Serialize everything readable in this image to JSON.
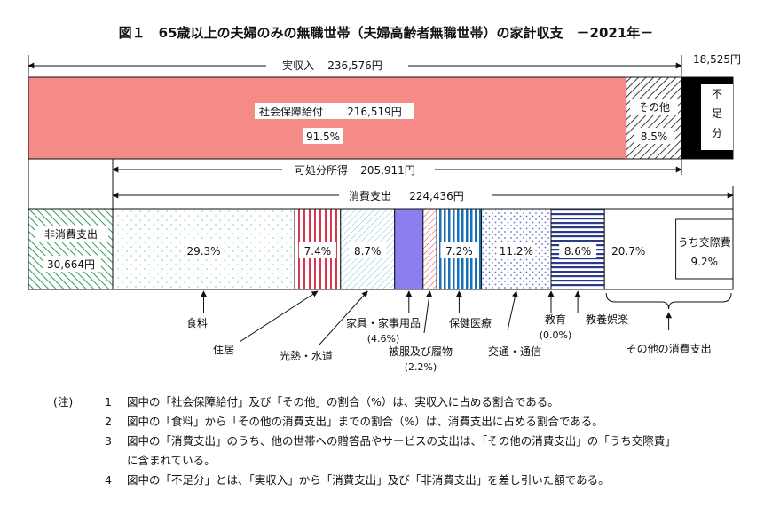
{
  "chart_data": {
    "type": "bar",
    "title": "図１　65歳以上の夫婦のみの無職世帯（夫婦高齢者無職世帯）の家計収支　－2021年－",
    "income": {
      "total_label": "実収入",
      "total_value": "236,576円",
      "shortfall_value": "18,525円",
      "shortfall_label": "不足分",
      "segments": [
        {
          "name": "社会保障給付",
          "amount": "216,519円",
          "share": "91.5%",
          "value": 216519
        },
        {
          "name": "その他",
          "share": "8.5%",
          "value": 20057
        }
      ]
    },
    "disposable": {
      "label": "可処分所得",
      "value": "205,911円"
    },
    "expenditure": {
      "total_label": "消費支出",
      "total_value": "224,436円",
      "non_consumption": {
        "name": "非消費支出",
        "amount": "30,664円",
        "value": 30664
      },
      "segments": [
        {
          "name": "食料",
          "share": "29.3%",
          "value": 29.3
        },
        {
          "name": "住居",
          "share": "7.4%",
          "value": 7.4
        },
        {
          "name": "光熱・水道",
          "share": "8.7%",
          "value": 8.7
        },
        {
          "name": "家具・家事用品",
          "share": "(4.6%)",
          "value": 4.6
        },
        {
          "name": "被服及び履物",
          "share": "(2.2%)",
          "value": 2.2
        },
        {
          "name": "保健医療",
          "share": "7.2%",
          "value": 7.2
        },
        {
          "name": "交通・通信",
          "share": "11.2%",
          "value": 11.2
        },
        {
          "name": "教育",
          "share": "(0.0%)",
          "value": 0.0
        },
        {
          "name": "教養娯楽",
          "share": "8.6%",
          "value": 8.6
        },
        {
          "name": "その他の消費支出",
          "share": "20.7%",
          "value": 20.7
        }
      ],
      "sub_segment": {
        "name": "うち交際費",
        "share": "9.2%",
        "value": 9.2
      }
    }
  },
  "notes": {
    "marker": "(注)",
    "items": [
      {
        "num": "1",
        "text": "図中の「社会保障給付」及び「その他」の割合（%）は、実収入に占める割合である。"
      },
      {
        "num": "2",
        "text": "図中の「食料」から「その他の消費支出」までの割合（%）は、消費支出に占める割合である。"
      },
      {
        "num": "3",
        "text": "図中の「消費支出」のうち、他の世帯への贈答品やサービスの支出は、「その他の消費支出」の「うち交際費」"
      },
      {
        "num": "",
        "text": "に含まれている。"
      },
      {
        "num": "4",
        "text": "図中の「不足分」とは、「実収入」から「消費支出」及び「非消費支出」を差し引いた額である。"
      }
    ]
  },
  "colors": {
    "social_security": "#f58b86",
    "shortfall": "#000000",
    "furniture": "#8b7ff0",
    "medical": "#1a70b8",
    "culture": "#2d3a8c",
    "clothing": "#e33b55",
    "housing": "#d9374e",
    "utilities": "#2a90c8",
    "transport": "#6070d0",
    "food": "#9ad8c4",
    "non_consumption": "#2e9a5a"
  }
}
